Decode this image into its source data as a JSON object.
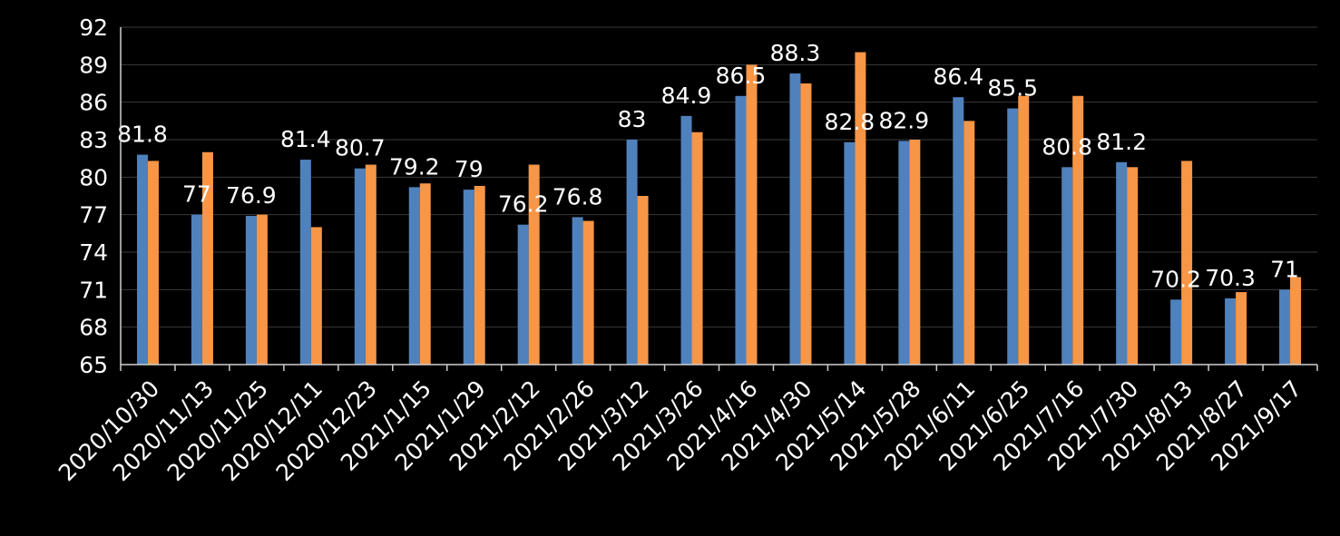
{
  "chart_data": {
    "type": "bar",
    "categories": [
      "2020/10/30",
      "2020/11/13",
      "2020/11/25",
      "2020/12/11",
      "2020/12/23",
      "2021/1/15",
      "2021/1/29",
      "2021/2/12",
      "2021/2/26",
      "2021/3/12",
      "2021/3/26",
      "2021/4/16",
      "2021/4/30",
      "2021/5/14",
      "2021/5/28",
      "2021/6/11",
      "2021/6/25",
      "2021/7/16",
      "2021/7/30",
      "2021/8/13",
      "2021/8/27",
      "2021/9/17"
    ],
    "series": [
      {
        "color": "#4f81bd",
        "values": [
          81.8,
          77,
          76.9,
          81.4,
          80.7,
          79.2,
          79,
          76.2,
          76.8,
          83,
          84.9,
          86.5,
          88.3,
          82.8,
          82.9,
          86.4,
          85.5,
          80.8,
          81.2,
          70.2,
          70.3,
          71
        ],
        "labels": [
          "81.8",
          "77",
          "76.9",
          "81.4",
          "80.7",
          "79.2",
          "79",
          "76.2",
          "76.8",
          "83",
          "84.9",
          "86.5",
          "88.3",
          "82.8",
          "82.9",
          "86.4",
          "85.5",
          "80.8",
          "81.2",
          "70.2",
          "70.3",
          "71"
        ]
      },
      {
        "color": "#f79646",
        "values": [
          81.3,
          82,
          77,
          76,
          81,
          79.5,
          79.3,
          81,
          76.5,
          78.5,
          83.6,
          89,
          87.5,
          90,
          83,
          84.5,
          86.5,
          86.5,
          80.8,
          81.3,
          70.8,
          72
        ]
      }
    ],
    "title": "",
    "xlabel": "",
    "ylabel": "",
    "ylim": [
      65,
      92
    ],
    "yticks": [
      "65",
      "68",
      "71",
      "74",
      "77",
      "80",
      "83",
      "86",
      "89",
      "92"
    ],
    "grid": true,
    "legend": "none"
  }
}
